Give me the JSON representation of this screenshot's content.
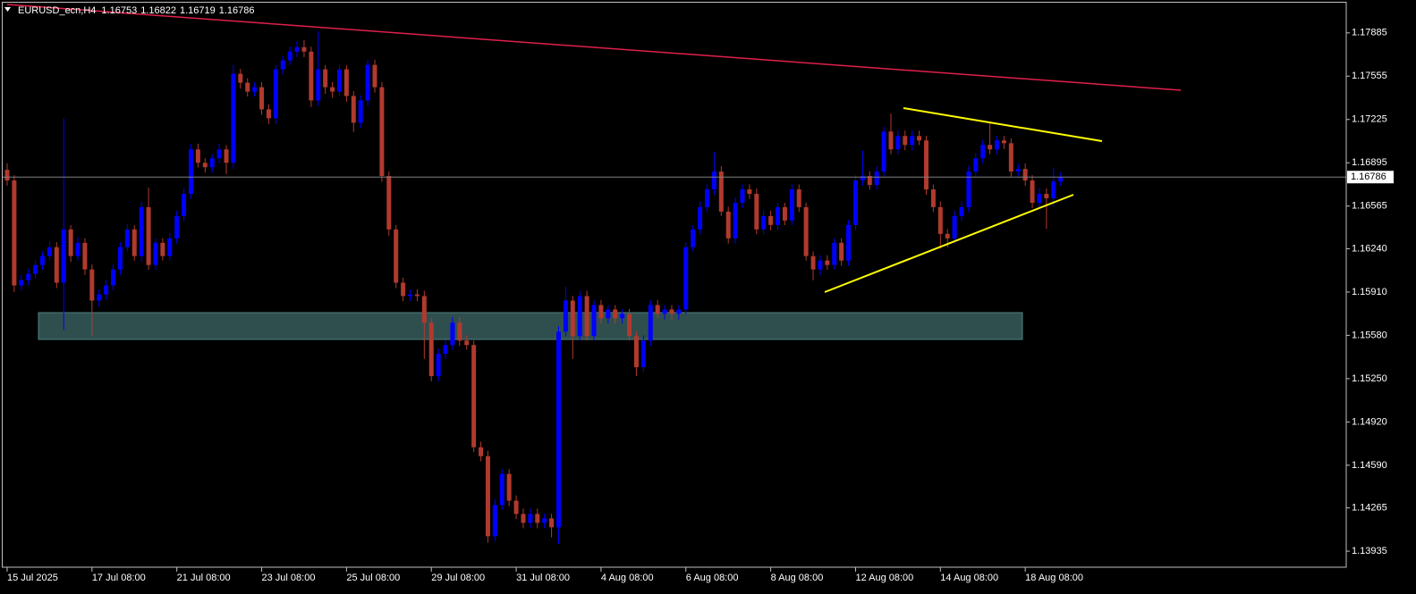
{
  "chart_data": {
    "type": "candlestick",
    "title": "EURUSD_ecn,H4",
    "up_color": "#0000ff",
    "down_color": "#b03a2e",
    "ylim": [
      1.13813,
      1.18115
    ],
    "yticks": [
      1.17885,
      1.17555,
      1.17225,
      1.16895,
      1.16565,
      {
        "value": 1.1624,
        "label": "1.16240"
      },
      {
        "value": 1.1591,
        "label": "1.15910"
      },
      {
        "value": 1.1558,
        "label": "1.15580"
      },
      {
        "value": 1.1525,
        "label": "1.15250"
      },
      {
        "value": 1.1492,
        "label": "1.14920"
      },
      {
        "value": 1.1459,
        "label": "1.14590"
      },
      1.14265,
      1.13935
    ],
    "xlim": [
      -0.63,
      189.4
    ],
    "xticks": [
      {
        "value": 0,
        "label": "15 Jul 2025"
      },
      {
        "value": 12,
        "label": "17 Jul 08:00"
      },
      {
        "value": 24,
        "label": "21 Jul 08:00"
      },
      {
        "value": 36,
        "label": "23 Jul 08:00"
      },
      {
        "value": 48,
        "label": "25 Jul 08:00"
      },
      {
        "value": 60,
        "label": "29 Jul 08:00"
      },
      {
        "value": 72,
        "label": "31 Jul 08:00"
      },
      {
        "value": 84,
        "label": "4 Aug 08:00"
      },
      {
        "value": 96,
        "label": "6 Aug 08:00"
      },
      {
        "value": 108,
        "label": "8 Aug 08:00"
      },
      {
        "value": 120,
        "label": "12 Aug 08:00"
      },
      {
        "value": 132,
        "label": "14 Aug 08:00"
      },
      {
        "value": 144,
        "label": "18 Aug 08:00"
      }
    ],
    "open": [
      1.16841,
      1.1676,
      1.1596,
      1.16001,
      1.16048,
      1.16116,
      1.16184,
      1.16252,
      1.15981,
      1.16387,
      1.16184,
      1.16285,
      1.16082,
      1.15845,
      1.15892,
      1.1596,
      1.16082,
      1.16252,
      1.16387,
      1.16184,
      1.16557,
      1.16116,
      1.16285,
      1.16184,
      1.16319,
      1.16489,
      1.16658,
      1.16997,
      1.16895,
      1.16861,
      1.16929,
      1.16997,
      1.16895,
      1.17573,
      1.17505,
      1.17437,
      1.17471,
      1.17302,
      1.17234,
      1.17607,
      1.17675,
      1.17742,
      1.17776,
      1.17742,
      1.1737,
      1.17607,
      1.17471,
      1.17437,
      1.17607,
      1.17404,
      1.172,
      1.1737,
      1.17641,
      1.17471,
      1.16794,
      1.16387,
      1.15981,
      1.15879,
      1.15892,
      1.15879,
      1.15676,
      1.15269,
      1.15439,
      1.15506,
      1.15676,
      1.1554,
      1.15506,
      1.14727,
      1.14659,
      1.14049,
      1.14287,
      1.14524,
      1.1432,
      1.14219,
      1.14151,
      1.14219,
      1.14151,
      1.14185,
      1.14117,
      1.15608,
      1.15845,
      1.15574,
      1.15879,
      1.15574,
      1.15811,
      1.1571,
      1.15777,
      1.1571,
      1.15744,
      1.15574,
      1.15337,
      1.1554,
      1.15811,
      1.15744,
      1.15777,
      1.15744,
      1.15777,
      1.16252,
      1.16387,
      1.16557,
      1.16692,
      1.16828,
      1.16523,
      1.16319,
      1.1659,
      1.16692,
      1.16658,
      1.16387,
      1.16489,
      1.16421,
      1.16557,
      1.16455,
      1.16692,
      1.16557,
      1.16184,
      1.16082,
      1.1615,
      1.16116,
      1.16285,
      1.1615,
      1.16421,
      1.1676,
      1.16794,
      1.16726,
      1.16828,
      1.17133,
      1.16997,
      1.17099,
      1.17031,
      1.17099,
      1.17065,
      1.16692,
      1.16557,
      1.16353,
      1.16319,
      1.16489,
      1.16557,
      1.16828,
      1.16929,
      1.17031,
      1.16997,
      1.17065,
      1.17044,
      1.16828,
      1.16848,
      1.1676,
      1.1659,
      1.16658,
      1.16624,
      1.16753
    ],
    "high": [
      1.16892,
      1.168,
      1.1604,
      1.1609,
      1.1615,
      1.1622,
      1.163,
      1.1629,
      1.17234,
      1.1642,
      1.1633,
      1.1632,
      1.1612,
      1.1593,
      1.16,
      1.1612,
      1.1629,
      1.1643,
      1.1642,
      1.166,
      1.16706,
      1.1632,
      1.1632,
      1.1636,
      1.1653,
      1.167,
      1.1704,
      1.1704,
      1.1693,
      1.1696,
      1.1704,
      1.1703,
      1.1764,
      1.1761,
      1.1754,
      1.1751,
      1.1751,
      1.1734,
      1.1764,
      1.1771,
      1.1778,
      1.1782,
      1.1783,
      1.1778,
      1.17898,
      1.1764,
      1.1751,
      1.1764,
      1.1764,
      1.1744,
      1.1741,
      1.1768,
      1.1768,
      1.1751,
      1.1683,
      1.1642,
      1.1602,
      1.1593,
      1.1593,
      1.1592,
      1.1571,
      1.1548,
      1.1554,
      1.1572,
      1.1572,
      1.1558,
      1.1554,
      1.1477,
      1.147,
      1.1433,
      1.1456,
      1.1456,
      1.1436,
      1.1426,
      1.1426,
      1.1426,
      1.1422,
      1.1422,
      1.1565,
      1.1595,
      1.1588,
      1.1592,
      1.1592,
      1.1585,
      1.1585,
      1.1581,
      1.1581,
      1.1578,
      1.1578,
      1.1561,
      1.1558,
      1.1585,
      1.1585,
      1.1581,
      1.1581,
      1.1581,
      1.1629,
      1.1642,
      1.166,
      1.1673,
      1.1698,
      1.1687,
      1.1656,
      1.1663,
      1.1673,
      1.1673,
      1.167,
      1.1653,
      1.1653,
      1.1659,
      1.1659,
      1.1673,
      1.1673,
      1.1659,
      1.1622,
      1.1619,
      1.1619,
      1.1632,
      1.1632,
      1.1646,
      1.168,
      1.1699,
      1.1683,
      1.1687,
      1.1717,
      1.1727,
      1.1714,
      1.1714,
      1.1714,
      1.1714,
      1.171,
      1.1673,
      1.166,
      1.1639,
      1.1653,
      1.166,
      1.1687,
      1.1697,
      1.1707,
      1.172,
      1.171,
      1.171,
      1.1708,
      1.1689,
      1.1689,
      1.168,
      1.167,
      1.167,
      1.1686,
      1.16822
    ],
    "low": [
      1.1672,
      1.1591,
      1.1592,
      1.1596,
      1.1601,
      1.1608,
      1.1615,
      1.1594,
      1.15621,
      1.1614,
      1.1615,
      1.1604,
      1.15574,
      1.158,
      1.1585,
      1.1592,
      1.1604,
      1.1622,
      1.1615,
      1.1614,
      1.1608,
      1.1608,
      1.1615,
      1.1615,
      1.1628,
      1.1645,
      1.1662,
      1.1686,
      1.1682,
      1.1682,
      1.1689,
      1.1681,
      1.1685,
      1.1746,
      1.174,
      1.174,
      1.1726,
      1.1719,
      1.1719,
      1.1757,
      1.1764,
      1.177,
      1.177,
      1.1732,
      1.1733,
      1.1742,
      1.1739,
      1.174,
      1.1736,
      1.1713,
      1.1716,
      1.1733,
      1.1743,
      1.1675,
      1.1634,
      1.1594,
      1.1584,
      1.1584,
      1.1584,
      1.154,
      1.1523,
      1.1523,
      1.154,
      1.1547,
      1.155,
      1.1547,
      1.1469,
      1.1462,
      1.14,
      1.1401,
      1.1425,
      1.1428,
      1.1418,
      1.1411,
      1.1411,
      1.1411,
      1.1411,
      1.1404,
      1.1399,
      1.1557,
      1.154,
      1.1554,
      1.1554,
      1.1554,
      1.1567,
      1.1567,
      1.1567,
      1.1567,
      1.1554,
      1.1527,
      1.153,
      1.155,
      1.1571,
      1.157,
      1.157,
      1.157,
      1.1574,
      1.1622,
      1.1635,
      1.1652,
      1.1665,
      1.1649,
      1.1628,
      1.1628,
      1.1655,
      1.1662,
      1.1635,
      1.1635,
      1.1638,
      1.1638,
      1.1642,
      1.1642,
      1.1652,
      1.1615,
      1.16,
      1.1604,
      1.1608,
      1.1608,
      1.1611,
      1.1611,
      1.1638,
      1.1672,
      1.1669,
      1.1669,
      1.1679,
      1.1696,
      1.1696,
      1.1699,
      1.1699,
      1.1703,
      1.1665,
      1.1652,
      1.1624,
      1.1625,
      1.1628,
      1.1645,
      1.1652,
      1.1679,
      1.1689,
      1.1696,
      1.1696,
      1.17,
      1.1679,
      1.1679,
      1.1672,
      1.1655,
      1.1655,
      1.1639,
      1.1656,
      1.16719
    ],
    "close": [
      1.1676,
      1.1596,
      1.16001,
      1.16048,
      1.16116,
      1.16184,
      1.16252,
      1.15981,
      1.16387,
      1.16184,
      1.16285,
      1.16082,
      1.15845,
      1.15892,
      1.1596,
      1.16082,
      1.16252,
      1.16387,
      1.16184,
      1.16557,
      1.16116,
      1.16285,
      1.16184,
      1.16319,
      1.16489,
      1.16658,
      1.16997,
      1.16895,
      1.16861,
      1.16929,
      1.16997,
      1.16895,
      1.17573,
      1.17505,
      1.17437,
      1.17471,
      1.17302,
      1.17234,
      1.17607,
      1.17675,
      1.17742,
      1.17776,
      1.17742,
      1.1737,
      1.17607,
      1.17471,
      1.17437,
      1.17607,
      1.17404,
      1.172,
      1.1737,
      1.17641,
      1.17471,
      1.16794,
      1.16387,
      1.15981,
      1.15879,
      1.15892,
      1.15879,
      1.15676,
      1.15269,
      1.15439,
      1.15506,
      1.15676,
      1.1554,
      1.15506,
      1.14727,
      1.14659,
      1.14049,
      1.14287,
      1.14524,
      1.1432,
      1.14219,
      1.14151,
      1.14219,
      1.14151,
      1.14185,
      1.14117,
      1.15608,
      1.15845,
      1.15574,
      1.15879,
      1.15574,
      1.15811,
      1.1571,
      1.15777,
      1.1571,
      1.15744,
      1.15574,
      1.15337,
      1.1554,
      1.15811,
      1.15744,
      1.15777,
      1.15744,
      1.15777,
      1.16252,
      1.16387,
      1.16557,
      1.16692,
      1.16828,
      1.16523,
      1.16319,
      1.1659,
      1.16692,
      1.16658,
      1.16387,
      1.16489,
      1.16421,
      1.16557,
      1.16455,
      1.16692,
      1.16557,
      1.16184,
      1.16082,
      1.1615,
      1.16116,
      1.16285,
      1.1615,
      1.16421,
      1.1676,
      1.16794,
      1.16726,
      1.16828,
      1.17133,
      1.16997,
      1.17099,
      1.17031,
      1.17099,
      1.17065,
      1.16692,
      1.16557,
      1.16353,
      1.16319,
      1.16489,
      1.16557,
      1.16828,
      1.16929,
      1.17031,
      1.16997,
      1.17065,
      1.17044,
      1.16828,
      1.16848,
      1.1676,
      1.1659,
      1.16658,
      1.16624,
      1.16753,
      1.16786
    ]
  }
}
